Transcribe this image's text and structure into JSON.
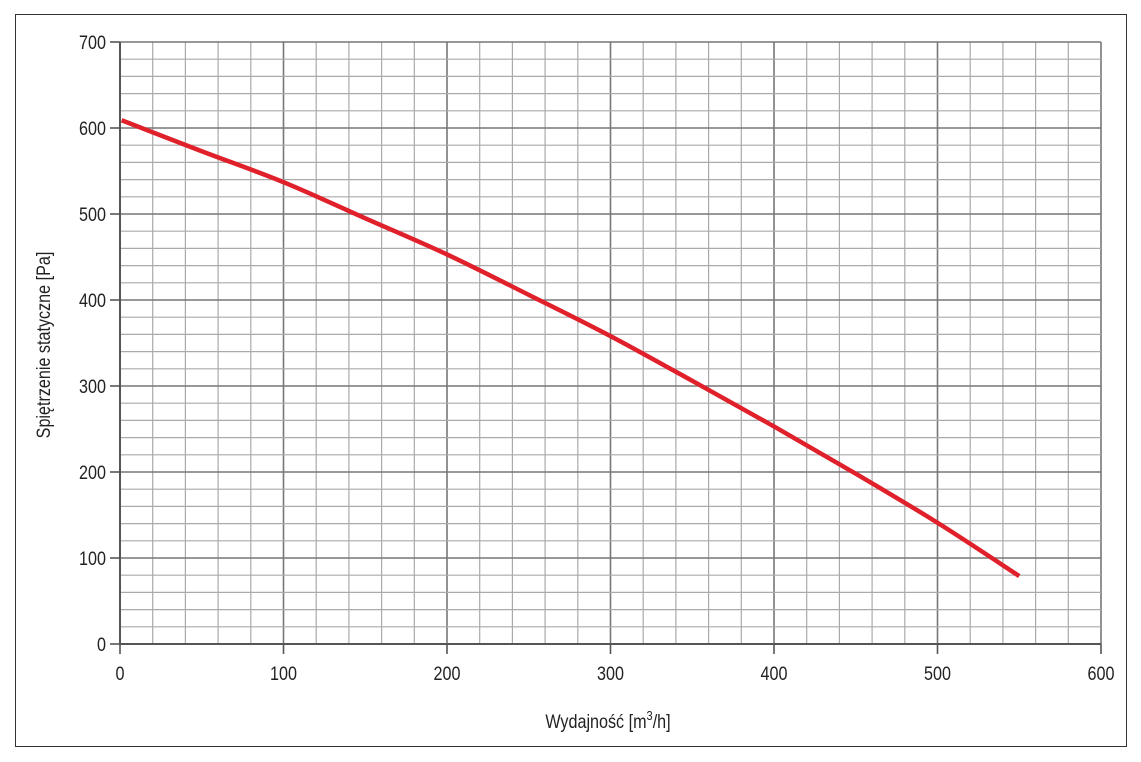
{
  "chart_data": {
    "type": "line",
    "title": "",
    "xlabel": "Wydajność [m³/h]",
    "xlabel_base": "Wydajność [m",
    "xlabel_sup": "3",
    "xlabel_end": "/h]",
    "ylabel": "Spiętrzenie statyczne [Pa]",
    "xlim": [
      0,
      600
    ],
    "ylim": [
      0,
      700
    ],
    "x_ticks": [
      0,
      100,
      200,
      300,
      400,
      500,
      600
    ],
    "y_ticks": [
      0,
      100,
      200,
      300,
      400,
      500,
      600,
      700
    ],
    "minor_step_x": 20,
    "minor_step_y": 20,
    "grid": true,
    "series": [
      {
        "color": "#e0202a",
        "x": [
          1,
          50,
          100,
          150,
          200,
          250,
          300,
          350,
          400,
          450,
          500,
          550
        ],
        "y": [
          609,
          573,
          537,
          495,
          453,
          406,
          358,
          306,
          253,
          198,
          141,
          79
        ]
      }
    ]
  }
}
